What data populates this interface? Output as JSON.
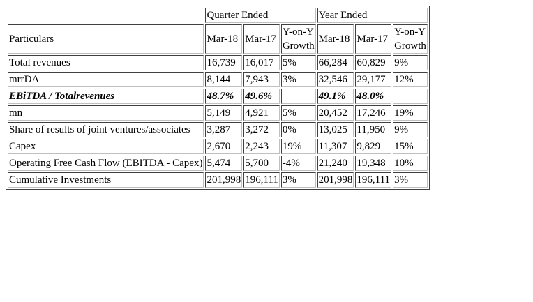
{
  "table": {
    "groups": {
      "quarter": "Quarter Ended",
      "year": "Year Ended"
    },
    "header": {
      "particulars": "Particulars",
      "q_cur": "Mar-18",
      "q_prev": "Mar-17",
      "q_growth_1": "Y-on-Y",
      "q_growth_2": "Growth",
      "y_cur": "Mar-18",
      "y_prev": "Mar-17",
      "y_growth_1": "Y-on-Y",
      "y_growth_2": "Growth"
    },
    "rows": [
      {
        "label": "Total revenues",
        "q_cur": "16,739",
        "q_prev": "16,017",
        "q_growth": "5%",
        "y_cur": "66,284",
        "y_prev": "60,829",
        "y_growth": "9%"
      },
      {
        "label": "mrrDA",
        "q_cur": "8,144",
        "q_prev": "7,943",
        "q_growth": "3%",
        "y_cur": "32,546",
        "y_prev": "29,177",
        "y_growth": "12%"
      },
      {
        "label": "EBiTDA / Totalrevenues",
        "q_cur": "48.7%",
        "q_prev": "49.6%",
        "q_growth": "",
        "y_cur": "49.1%",
        "y_prev": "48.0%",
        "y_growth": ""
      },
      {
        "label": "mn",
        "q_cur": "5,149",
        "q_prev": "4,921",
        "q_growth": "5%",
        "y_cur": "20,452",
        "y_prev": "17,246",
        "y_growth": "19%"
      },
      {
        "label": "Share of results of joint ventures/associates",
        "q_cur": "3,287",
        "q_prev": "3,272",
        "q_growth": "0%",
        "y_cur": "13,025",
        "y_prev": "11,950",
        "y_growth": "9%"
      },
      {
        "label": "Capex",
        "q_cur": "2,670",
        "q_prev": "2,243",
        "q_growth": "19%",
        "y_cur": "11,307",
        "y_prev": "9,829",
        "y_growth": "15%"
      },
      {
        "label": "Operating Free Cash Flow (EBITDA - Capex)",
        "q_cur": "5,474",
        "q_prev": "5,700",
        "q_growth": "-4%",
        "y_cur": "21,240",
        "y_prev": "19,348",
        "y_growth": "10%"
      },
      {
        "label": "Cumulative Investments",
        "q_cur": "201,998",
        "q_prev": "196,111",
        "q_growth": "3%",
        "y_cur": "201,998",
        "y_prev": "196,111",
        "y_growth": "3%"
      }
    ]
  }
}
